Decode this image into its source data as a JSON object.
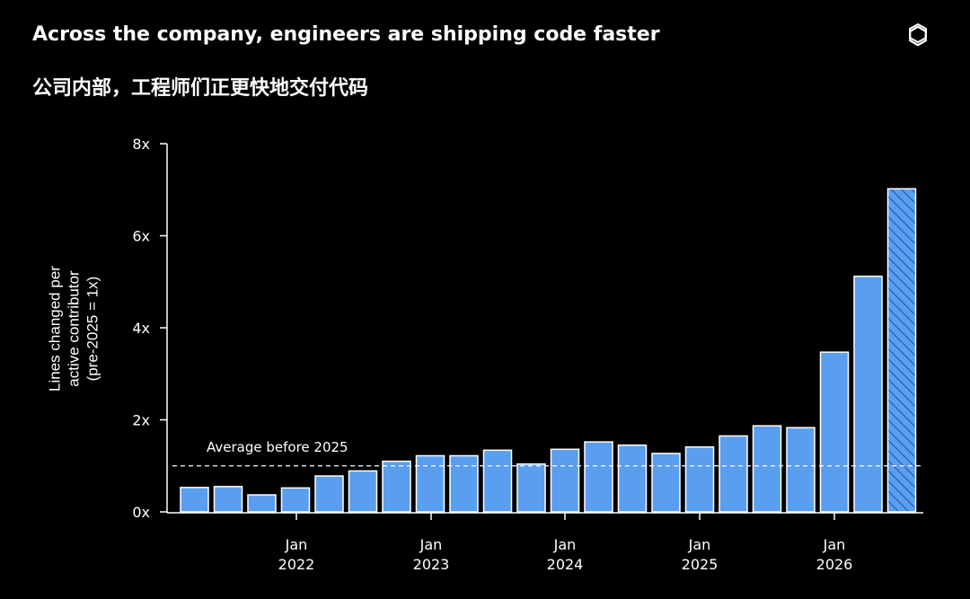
{
  "header": {
    "title": "Across the company, engineers are shipping code faster",
    "subtitle": "公司内部，工程师们正更快地交付代码",
    "logo_icon": "openai-logo-icon"
  },
  "colors": {
    "background": "#000000",
    "bar_fill": "#5a9ef0",
    "bar_stroke": "#ffffff",
    "text": "#ffffff"
  },
  "chart_data": {
    "type": "bar",
    "ylabel_lines": [
      "Lines changed per",
      "active contributor",
      "(pre-2025 = 1x)"
    ],
    "ylim": [
      0,
      8
    ],
    "y_ticks": [
      {
        "value": 0,
        "label": "0x"
      },
      {
        "value": 2,
        "label": "2x"
      },
      {
        "value": 4,
        "label": "4x"
      },
      {
        "value": 6,
        "label": "6x"
      },
      {
        "value": 8,
        "label": "8x"
      }
    ],
    "x_ticks": [
      {
        "label": "Jan",
        "year": "2022"
      },
      {
        "label": "Jan",
        "year": "2023"
      },
      {
        "label": "Jan",
        "year": "2024"
      },
      {
        "label": "Jan",
        "year": "2025"
      },
      {
        "label": "Jan",
        "year": "2026"
      }
    ],
    "values": [
      0.53,
      0.55,
      0.37,
      0.52,
      0.78,
      0.89,
      1.1,
      1.22,
      1.22,
      1.34,
      1.04,
      1.36,
      1.52,
      1.45,
      1.27,
      1.41,
      1.65,
      1.87,
      1.83,
      3.47,
      5.12,
      7.02
    ],
    "hatched_last": true,
    "reference_line": {
      "value": 1.0,
      "label": "Average before 2025"
    },
    "grid": false,
    "legend": "none"
  }
}
